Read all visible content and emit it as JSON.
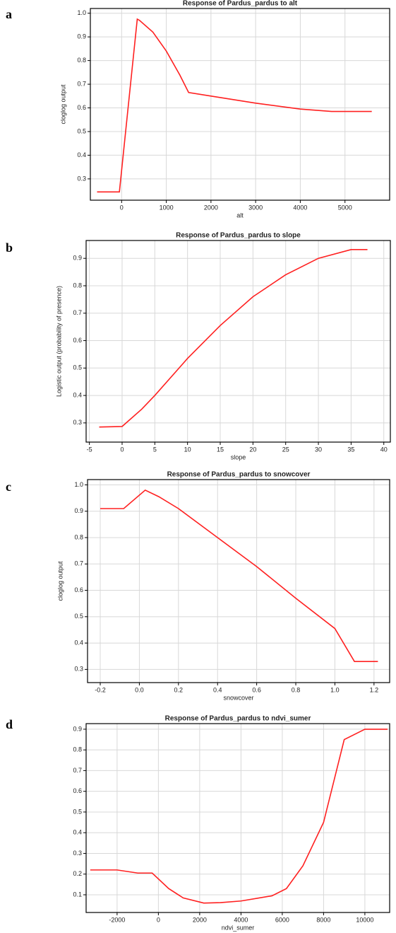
{
  "chart_data": [
    {
      "type": "line",
      "panel_label": "a",
      "title": "Response of Pardus_pardus to alt",
      "x_label": "alt",
      "y_label": "cloglog output",
      "x": [
        -550,
        -50,
        350,
        400,
        700,
        1000,
        1300,
        1500,
        2000,
        3000,
        4000,
        4700,
        5600
      ],
      "values": [
        0.245,
        0.245,
        0.975,
        0.97,
        0.92,
        0.84,
        0.74,
        0.665,
        0.65,
        0.62,
        0.595,
        0.585,
        0.585
      ],
      "color": "#ff2020",
      "grid": true,
      "xlim": [
        -700,
        6000
      ],
      "xticks": [
        0,
        1000,
        2000,
        3000,
        4000,
        5000
      ],
      "ylim": [
        0.21,
        1.02
      ],
      "yticks": [
        0.3,
        0.4,
        0.5,
        0.6,
        0.7,
        0.8,
        0.9,
        {
          "value": 1,
          "label": "1.0"
        }
      ]
    },
    {
      "type": "line",
      "panel_label": "b",
      "title": "Response of Pardus_pardus to slope",
      "x_label": "slope",
      "y_label": "Logistic output (probability of presence)",
      "x": [
        -3.5,
        0,
        3,
        5,
        10,
        15,
        20,
        25,
        30,
        35,
        37.5
      ],
      "values": [
        0.285,
        0.287,
        0.35,
        0.4,
        0.535,
        0.655,
        0.76,
        0.84,
        0.9,
        0.932,
        0.932
      ],
      "color": "#ff2020",
      "grid": true,
      "xlim": [
        -5.5,
        41
      ],
      "xticks": [
        -5,
        0,
        5,
        10,
        15,
        20,
        25,
        30,
        35,
        40
      ],
      "ylim": [
        0.23,
        0.965
      ],
      "yticks": [
        0.3,
        0.4,
        0.5,
        0.6,
        0.7,
        0.8,
        0.9
      ]
    },
    {
      "type": "line",
      "panel_label": "c",
      "title": "Response of Pardus_pardus to snowcover",
      "x_label": "snowcover",
      "y_label": "cloglog output",
      "x": [
        -0.2,
        -0.08,
        0.03,
        0.1,
        0.2,
        0.4,
        0.6,
        0.8,
        1.0,
        1.1,
        1.22
      ],
      "values": [
        0.91,
        0.91,
        0.98,
        0.955,
        0.91,
        0.8,
        0.69,
        0.57,
        0.455,
        0.33,
        0.33
      ],
      "color": "#ff2020",
      "grid": true,
      "xlim": [
        -0.265,
        1.28
      ],
      "xticks": [
        -0.2,
        {
          "value": 0,
          "label": "0.0"
        },
        0.2,
        0.4,
        0.6,
        0.8,
        {
          "value": 1,
          "label": "1.0"
        },
        1.2
      ],
      "ylim": [
        0.25,
        1.02
      ],
      "yticks": [
        0.3,
        0.4,
        0.5,
        0.6,
        0.7,
        0.8,
        0.9,
        {
          "value": 1,
          "label": "1.0"
        }
      ]
    },
    {
      "type": "line",
      "panel_label": "d",
      "title": "Response of Pardus_pardus to ndvi_sumer",
      "x_label": "ndvi_sumer",
      "x": [
        -3300,
        -2000,
        -1000,
        -300,
        500,
        1200,
        2200,
        3000,
        4000,
        5500,
        6200,
        7000,
        8000,
        9000,
        10000,
        11100
      ],
      "values": [
        0.22,
        0.22,
        0.205,
        0.205,
        0.13,
        0.085,
        0.06,
        0.062,
        0.07,
        0.095,
        0.13,
        0.24,
        0.45,
        0.85,
        0.9,
        0.9
      ],
      "color": "#ff2020",
      "grid": true,
      "xlim": [
        -3500,
        11200
      ],
      "xticks": [
        -2000,
        0,
        2000,
        4000,
        6000,
        8000,
        10000
      ],
      "ylim": [
        0.0145,
        0.927
      ],
      "yticks": [
        0.1,
        0.2,
        0.3,
        0.4,
        0.5,
        0.6,
        0.7,
        0.8,
        0.9
      ]
    }
  ]
}
